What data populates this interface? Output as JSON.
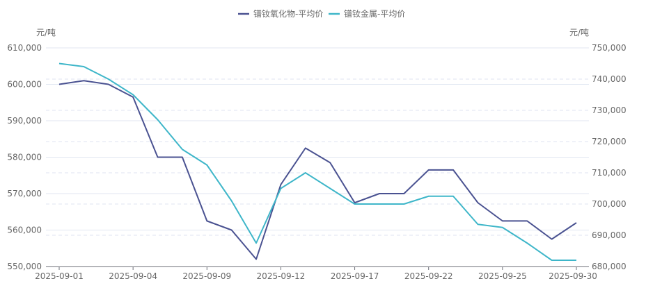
{
  "chart_data": {
    "type": "line",
    "title": "",
    "left_unit": "元/吨",
    "right_unit": "元/吨",
    "x": [
      "2025-09-01",
      "2025-09-02",
      "2025-09-03",
      "2025-09-04",
      "2025-09-05",
      "2025-09-08",
      "2025-09-09",
      "2025-09-10",
      "2025-09-11",
      "2025-09-12",
      "2025-09-15",
      "2025-09-16",
      "2025-09-17",
      "2025-09-18",
      "2025-09-19",
      "2025-09-22",
      "2025-09-23",
      "2025-09-24",
      "2025-09-25",
      "2025-09-26",
      "2025-09-29",
      "2025-09-30"
    ],
    "x_tick_labels": [
      "2025-09-01",
      "2025-09-04",
      "2025-09-09",
      "2025-09-12",
      "2025-09-17",
      "2025-09-22",
      "2025-09-25",
      "2025-09-30"
    ],
    "left_axis": {
      "ylim": [
        550000,
        610000
      ],
      "ticks": [
        "550,000",
        "560,000",
        "570,000",
        "580,000",
        "590,000",
        "600,000",
        "610,000"
      ]
    },
    "right_axis": {
      "ylim": [
        680000,
        750000
      ],
      "ticks": [
        "680,000",
        "690,000",
        "700,000",
        "710,000",
        "720,000",
        "730,000",
        "740,000",
        "750,000"
      ]
    },
    "legend_position": "top-center",
    "series": [
      {
        "name": "镨钕氧化物-平均价",
        "axis": "left",
        "color": "#4a5291",
        "values": [
          600000,
          601000,
          600000,
          596500,
          580000,
          580000,
          562500,
          560000,
          552000,
          572500,
          582500,
          578500,
          567500,
          570000,
          570000,
          576500,
          576500,
          567500,
          562500,
          562500,
          557500,
          562000
        ]
      },
      {
        "name": "镨钕金属-平均价",
        "axis": "right",
        "color": "#3eb6c9",
        "values": [
          745000,
          744000,
          740000,
          735000,
          727000,
          717500,
          712500,
          701000,
          687500,
          705000,
          710000,
          705000,
          700000,
          700000,
          700000,
          702500,
          702500,
          693500,
          692500,
          687500,
          682000,
          682000
        ]
      }
    ]
  }
}
